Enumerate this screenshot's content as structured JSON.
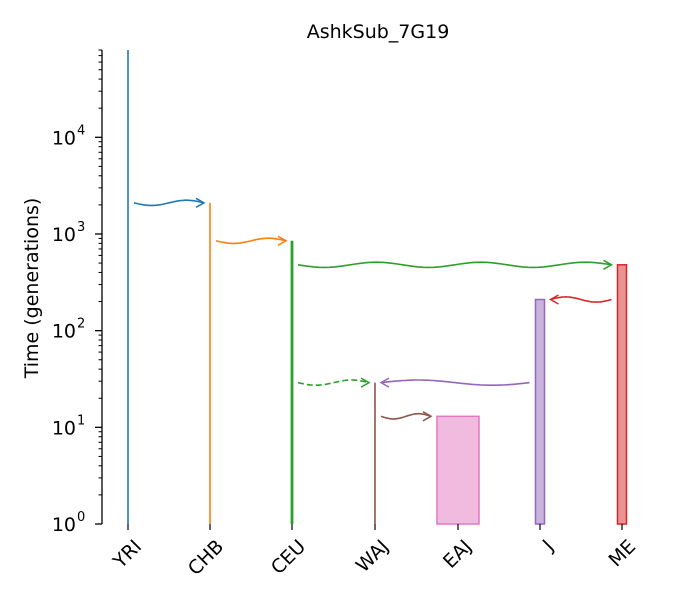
{
  "chart_data": {
    "type": "demography",
    "title": "AshkSub_7G19",
    "ylabel": "Time (generations)",
    "yscale": "log",
    "ylim": [
      1,
      80000
    ],
    "yticks": [
      {
        "value": 1,
        "base": "10",
        "exp": "0"
      },
      {
        "value": 10,
        "base": "10",
        "exp": "1"
      },
      {
        "value": 100,
        "base": "10",
        "exp": "2"
      },
      {
        "value": 1000,
        "base": "10",
        "exp": "3"
      },
      {
        "value": 10000,
        "base": "10",
        "exp": "4"
      }
    ],
    "demes": [
      {
        "name": "YRI",
        "color": "#1f77b4",
        "start": 80000,
        "end": 1,
        "width": "line"
      },
      {
        "name": "CHB",
        "color": "#ff7f0e",
        "start": 2100,
        "end": 1,
        "width": "line"
      },
      {
        "name": "CEU",
        "color": "#2ca02c",
        "start": 850,
        "end": 1,
        "width": "line-thick"
      },
      {
        "name": "WAJ",
        "color": "#8c564b",
        "start": 29,
        "end": 1,
        "width": "line"
      },
      {
        "name": "EAJ",
        "color": "#e377c2",
        "start": 13,
        "end": 1,
        "width": "box"
      },
      {
        "name": "J",
        "color": "#9467bd",
        "start": 210,
        "end": 1,
        "width": "narrow-box"
      },
      {
        "name": "ME",
        "color": "#d62728",
        "start": 480,
        "end": 1,
        "width": "narrow-box"
      }
    ],
    "events": [
      {
        "from": "YRI",
        "to": "CHB",
        "time": 2100,
        "color": "#1f77b4",
        "style": "solid"
      },
      {
        "from": "CHB",
        "to": "CEU",
        "time": 850,
        "color": "#ff7f0e",
        "style": "solid"
      },
      {
        "from": "CEU",
        "to": "ME",
        "time": 480,
        "color": "#2ca02c",
        "style": "solid"
      },
      {
        "from": "ME",
        "to": "J",
        "time": 210,
        "color": "#d62728",
        "style": "solid"
      },
      {
        "from": "CEU",
        "to": "WAJ",
        "time": 29,
        "color": "#2ca02c",
        "style": "dashed"
      },
      {
        "from": "J",
        "to": "WAJ",
        "time": 29,
        "color": "#9467bd",
        "style": "solid"
      },
      {
        "from": "WAJ",
        "to": "EAJ",
        "time": 13,
        "color": "#8c564b",
        "style": "solid"
      }
    ]
  }
}
